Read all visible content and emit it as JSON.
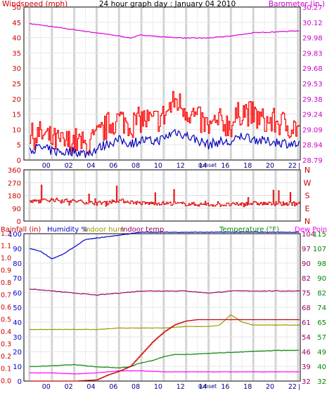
{
  "header": {
    "title": "24 hour graph day : January 04 2010",
    "left_label": "Windspeed (mph)",
    "right_label": "Barometer (in.)"
  },
  "colors": {
    "wind": "#ff0000",
    "gust_fill": "#ffffff",
    "wind_avg": "#0000bb",
    "barometer": "#dd00dd",
    "direction": "#dd0000",
    "rainfall": "#cc0000",
    "humidity": "#0000cc",
    "indoor_hum": "#999900",
    "indoor_temp": "#990066",
    "temperature": "#008800",
    "dew_point": "#ff00ff"
  },
  "x_axis": {
    "ticks": [
      "00",
      "02",
      "04",
      "06",
      "08",
      "10",
      "12",
      "14",
      "16",
      "18",
      "20",
      "22"
    ],
    "sunset_label": "sunset"
  },
  "panel1": {
    "left_ticks": [
      "0",
      "5",
      "10",
      "15",
      "20",
      "25",
      "30",
      "35",
      "40",
      "45",
      "50"
    ],
    "right_ticks": [
      "28.79",
      "28.94",
      "29.09",
      "29.24",
      "29.38",
      "29.53",
      "29.68",
      "29.83",
      "29.98",
      "30.12",
      "30.27"
    ]
  },
  "panel2": {
    "left_ticks": [
      "360",
      "270",
      "180",
      "90",
      "0"
    ],
    "right_letters": [
      "N",
      "W",
      "S",
      "E",
      "N"
    ]
  },
  "panel3": {
    "legend": {
      "rainfall": "Rainfall (in)",
      "humidity": "Humidity %",
      "indoor_hum": "Indoor hum",
      "indoor_temp": "Indoor temp",
      "temperature": "Temperature (°F)",
      "dew_point": "Dew Point"
    },
    "rain_ticks": [
      "0.0",
      "0.1",
      "0.2",
      "0.3",
      "0.4",
      "0.5",
      "0.6",
      "0.7",
      "0.8",
      "0.9",
      "1.0",
      "1.1",
      "1.2"
    ],
    "hum_ticks": [
      "0",
      "10",
      "20",
      "30",
      "40",
      "50",
      "60",
      "70",
      "80",
      "90",
      "100"
    ],
    "temp_a_ticks": [
      "32",
      "39",
      "46",
      "54",
      "61",
      "68",
      "75",
      "82",
      "90",
      "97",
      "104"
    ],
    "temp_b_ticks": [
      "32",
      "40",
      "49",
      "57",
      "65",
      "74",
      "82",
      "90",
      "98",
      "107",
      "115"
    ]
  },
  "chart_data": [
    {
      "type": "line",
      "series": [
        {
          "name": "Windspeed (mph)",
          "axis": "left",
          "x_hours": [
            0,
            1,
            2,
            3,
            4,
            5,
            6,
            7,
            8,
            9,
            10,
            11,
            12,
            13,
            14,
            15,
            16,
            17,
            18,
            19,
            20,
            21,
            22,
            23,
            24
          ],
          "values": [
            7,
            8,
            6,
            5,
            6,
            4,
            7,
            11,
            13,
            11,
            13,
            12,
            14,
            19,
            16,
            13,
            10,
            12,
            11,
            16,
            14,
            12,
            12,
            11,
            10
          ]
        },
        {
          "name": "Barometer (in.)",
          "axis": "right",
          "x_hours": [
            0,
            2,
            4,
            6,
            8,
            9,
            10,
            12,
            14,
            16,
            18,
            20,
            22,
            24
          ],
          "values": [
            30.11,
            30.08,
            30.05,
            30.02,
            29.99,
            29.97,
            30.0,
            29.98,
            29.97,
            29.97,
            29.99,
            30.02,
            30.03,
            30.04
          ]
        }
      ],
      "left_range": [
        0,
        50
      ],
      "right_range": [
        28.79,
        30.27
      ]
    },
    {
      "type": "line",
      "series": [
        {
          "name": "Wind direction",
          "x_hours": [
            0,
            2,
            4,
            6,
            8,
            10,
            12,
            14,
            16,
            18,
            20,
            22,
            24
          ],
          "values": [
            135,
            150,
            140,
            125,
            145,
            125,
            125,
            120,
            115,
            115,
            125,
            120,
            125
          ]
        }
      ],
      "y_range": [
        0,
        360
      ]
    },
    {
      "type": "line",
      "series": [
        {
          "name": "Humidity %",
          "axis": "hum",
          "x_hours": [
            0,
            1,
            2,
            3,
            4,
            5,
            6,
            7,
            8,
            9,
            10,
            11,
            12,
            13,
            14,
            15,
            16,
            17,
            18,
            19,
            20,
            21,
            22,
            23,
            24
          ],
          "values": [
            90,
            88,
            83,
            86,
            91,
            96,
            97,
            98,
            99,
            100,
            101,
            101,
            101,
            101,
            101,
            101,
            101,
            101,
            101,
            101,
            101,
            101,
            101,
            101,
            101
          ]
        },
        {
          "name": "Indoor hum",
          "axis": "hum",
          "x_hours": [
            0,
            2,
            4,
            6,
            8,
            10,
            12,
            14,
            16,
            17,
            18,
            19,
            20,
            22,
            24
          ],
          "values": [
            35,
            35,
            35,
            35,
            36,
            36,
            36,
            37,
            37,
            38,
            45,
            40,
            38,
            38,
            38
          ]
        },
        {
          "name": "Indoor temp",
          "axis": "temp_a",
          "x_hours": [
            0,
            2,
            4,
            6,
            8,
            10,
            12,
            14,
            16,
            18,
            20,
            22,
            24
          ],
          "values": [
            77,
            76,
            75,
            74,
            75,
            76,
            76,
            76,
            75,
            76,
            76,
            76,
            76
          ]
        },
        {
          "name": "Temperature (°F)",
          "axis": "temp_a",
          "x_hours": [
            0,
            2,
            4,
            6,
            8,
            9,
            10,
            11,
            12,
            13,
            14,
            16,
            18,
            20,
            22,
            24
          ],
          "values": [
            39,
            39.5,
            40,
            39,
            38.5,
            39,
            41,
            42,
            44,
            45,
            45,
            45.5,
            46,
            46.5,
            47,
            47
          ]
        },
        {
          "name": "Dew Point",
          "axis": "temp_a",
          "x_hours": [
            0,
            2,
            4,
            6,
            8,
            10,
            12,
            14,
            16,
            18,
            20,
            22,
            24
          ],
          "values": [
            36,
            36,
            35.5,
            36,
            37,
            37,
            36.5,
            36.5,
            36.5,
            36.5,
            36.5,
            36.5,
            36.5
          ]
        },
        {
          "name": "Rainfall (in)",
          "axis": "rain",
          "x_hours": [
            0,
            4,
            6,
            7,
            8,
            9,
            10,
            11,
            12,
            13,
            14,
            15,
            16,
            24
          ],
          "values": [
            0,
            0,
            0.01,
            0.05,
            0.08,
            0.12,
            0.22,
            0.32,
            0.4,
            0.46,
            0.49,
            0.5,
            0.5,
            0.5
          ]
        }
      ],
      "rain_range": [
        0,
        1.2
      ],
      "hum_range": [
        0,
        100
      ],
      "temp_a_range": [
        32,
        104
      ],
      "temp_b_range": [
        32,
        115
      ]
    }
  ]
}
